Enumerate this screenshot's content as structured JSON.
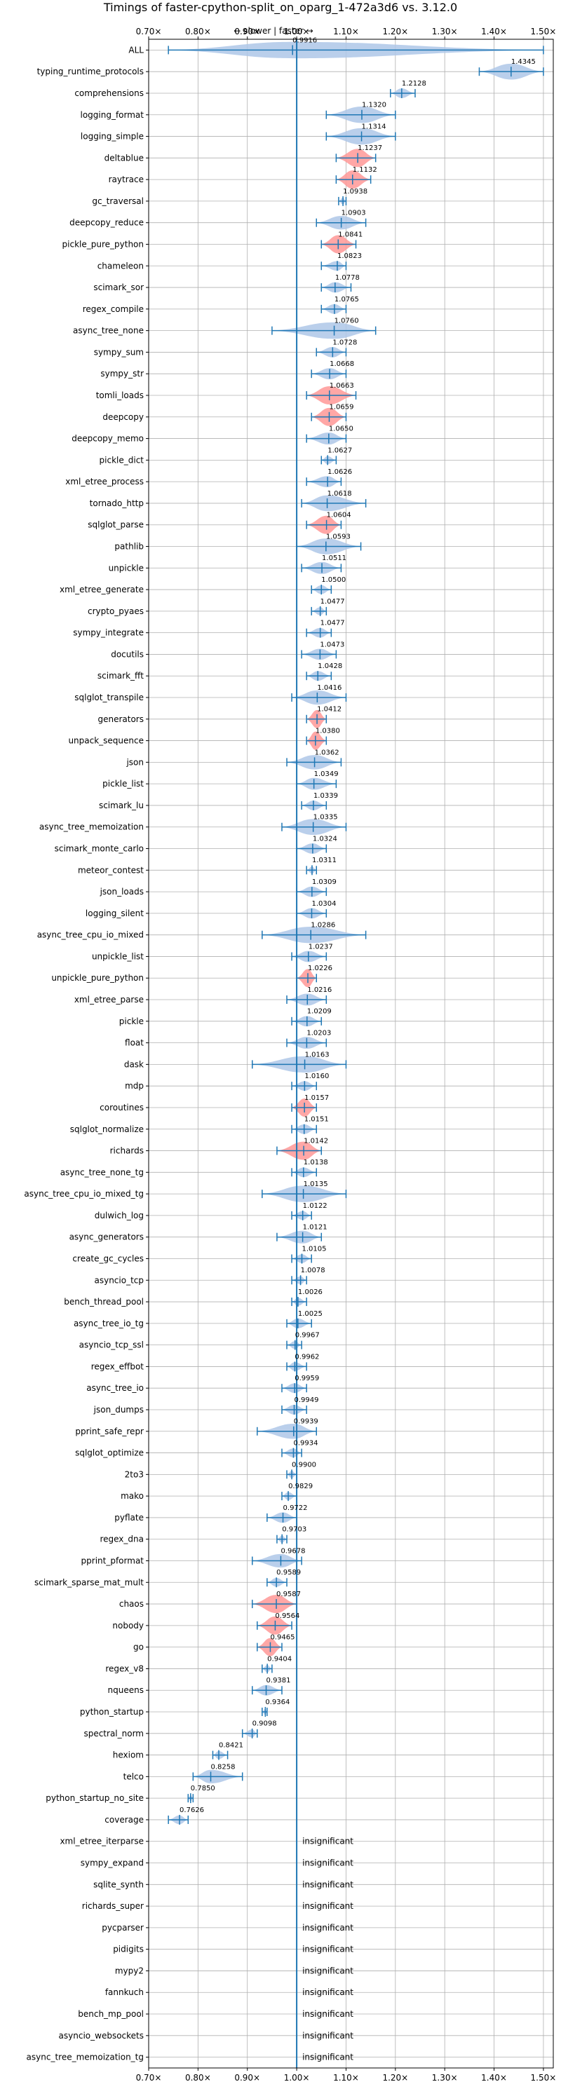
{
  "chart_data": {
    "type": "violin",
    "title": "Timings of faster-cpython-split_on_oparg_1-472a3d6 vs. 3.12.0",
    "direction_label": "← slower | faster →",
    "xlim": [
      0.7,
      1.52
    ],
    "x_ticks": [
      0.7,
      0.8,
      0.9,
      1.0,
      1.1,
      1.2,
      1.3,
      1.4,
      1.5
    ],
    "x_tick_labels": [
      "0.70×",
      "0.80×",
      "0.90×",
      "1.00×",
      "1.10×",
      "1.20×",
      "1.30×",
      "1.40×",
      "1.50×"
    ],
    "reference_line": 1.0,
    "grid": true,
    "insignificant_label": "insignificant",
    "colors": {
      "normal": "#1f77b4",
      "highlight": "#ff9896",
      "violin": "#aec7e8",
      "grid": "#b0b0b0"
    },
    "benchmarks": [
      {
        "name": "ALL",
        "value": 0.9916,
        "label": "0.9916",
        "min": 0.74,
        "max": 1.5
      },
      {
        "name": "typing_runtime_protocols",
        "value": 1.4345,
        "label": "1.4345",
        "min": 1.37,
        "max": 1.5
      },
      {
        "name": "comprehensions",
        "value": 1.2128,
        "label": "1.2128",
        "min": 1.19,
        "max": 1.24
      },
      {
        "name": "logging_format",
        "value": 1.132,
        "label": "1.1320",
        "min": 1.06,
        "max": 1.2
      },
      {
        "name": "logging_simple",
        "value": 1.1314,
        "label": "1.1314",
        "min": 1.06,
        "max": 1.2
      },
      {
        "name": "deltablue",
        "value": 1.1237,
        "label": "1.1237",
        "min": 1.08,
        "max": 1.16,
        "highlight": true
      },
      {
        "name": "raytrace",
        "value": 1.1132,
        "label": "1.1132",
        "min": 1.08,
        "max": 1.15,
        "highlight": true
      },
      {
        "name": "gc_traversal",
        "value": 1.0938,
        "label": "1.0938",
        "min": 1.085,
        "max": 1.1
      },
      {
        "name": "deepcopy_reduce",
        "value": 1.0903,
        "label": "1.0903",
        "min": 1.04,
        "max": 1.14
      },
      {
        "name": "pickle_pure_python",
        "value": 1.0841,
        "label": "1.0841",
        "min": 1.05,
        "max": 1.12,
        "highlight": true
      },
      {
        "name": "chameleon",
        "value": 1.0823,
        "label": "1.0823",
        "min": 1.05,
        "max": 1.1
      },
      {
        "name": "scimark_sor",
        "value": 1.0778,
        "label": "1.0778",
        "min": 1.05,
        "max": 1.11
      },
      {
        "name": "regex_compile",
        "value": 1.0765,
        "label": "1.0765",
        "min": 1.05,
        "max": 1.1
      },
      {
        "name": "async_tree_none",
        "value": 1.076,
        "label": "1.0760",
        "min": 0.95,
        "max": 1.16
      },
      {
        "name": "sympy_sum",
        "value": 1.0728,
        "label": "1.0728",
        "min": 1.04,
        "max": 1.1
      },
      {
        "name": "sympy_str",
        "value": 1.0668,
        "label": "1.0668",
        "min": 1.03,
        "max": 1.1
      },
      {
        "name": "tomli_loads",
        "value": 1.0663,
        "label": "1.0663",
        "min": 1.02,
        "max": 1.12,
        "highlight": true
      },
      {
        "name": "deepcopy",
        "value": 1.0659,
        "label": "1.0659",
        "min": 1.03,
        "max": 1.1,
        "highlight": true
      },
      {
        "name": "deepcopy_memo",
        "value": 1.065,
        "label": "1.0650",
        "min": 1.02,
        "max": 1.1
      },
      {
        "name": "pickle_dict",
        "value": 1.0627,
        "label": "1.0627",
        "min": 1.05,
        "max": 1.08
      },
      {
        "name": "xml_etree_process",
        "value": 1.0626,
        "label": "1.0626",
        "min": 1.02,
        "max": 1.09
      },
      {
        "name": "tornado_http",
        "value": 1.0618,
        "label": "1.0618",
        "min": 1.01,
        "max": 1.14
      },
      {
        "name": "sqlglot_parse",
        "value": 1.0604,
        "label": "1.0604",
        "min": 1.02,
        "max": 1.09,
        "highlight": true
      },
      {
        "name": "pathlib",
        "value": 1.0593,
        "label": "1.0593",
        "min": 1.0,
        "max": 1.13
      },
      {
        "name": "unpickle",
        "value": 1.0511,
        "label": "1.0511",
        "min": 1.01,
        "max": 1.09
      },
      {
        "name": "xml_etree_generate",
        "value": 1.05,
        "label": "1.0500",
        "min": 1.03,
        "max": 1.07
      },
      {
        "name": "crypto_pyaes",
        "value": 1.0477,
        "label": "1.0477",
        "min": 1.03,
        "max": 1.06
      },
      {
        "name": "sympy_integrate",
        "value": 1.0477,
        "label": "1.0477",
        "min": 1.02,
        "max": 1.07
      },
      {
        "name": "docutils",
        "value": 1.0473,
        "label": "1.0473",
        "min": 1.01,
        "max": 1.08
      },
      {
        "name": "scimark_fft",
        "value": 1.0428,
        "label": "1.0428",
        "min": 1.02,
        "max": 1.07
      },
      {
        "name": "sqlglot_transpile",
        "value": 1.0416,
        "label": "1.0416",
        "min": 0.99,
        "max": 1.1
      },
      {
        "name": "generators",
        "value": 1.0412,
        "label": "1.0412",
        "min": 1.02,
        "max": 1.06,
        "highlight": true
      },
      {
        "name": "unpack_sequence",
        "value": 1.038,
        "label": "1.0380",
        "min": 1.02,
        "max": 1.06,
        "highlight": true
      },
      {
        "name": "json",
        "value": 1.0362,
        "label": "1.0362",
        "min": 0.98,
        "max": 1.09
      },
      {
        "name": "pickle_list",
        "value": 1.0349,
        "label": "1.0349",
        "min": 1.0,
        "max": 1.08
      },
      {
        "name": "scimark_lu",
        "value": 1.0339,
        "label": "1.0339",
        "min": 1.01,
        "max": 1.06
      },
      {
        "name": "async_tree_memoization",
        "value": 1.0335,
        "label": "1.0335",
        "min": 0.97,
        "max": 1.1
      },
      {
        "name": "scimark_monte_carlo",
        "value": 1.0324,
        "label": "1.0324",
        "min": 1.0,
        "max": 1.06
      },
      {
        "name": "meteor_contest",
        "value": 1.0311,
        "label": "1.0311",
        "min": 1.02,
        "max": 1.04
      },
      {
        "name": "json_loads",
        "value": 1.0309,
        "label": "1.0309",
        "min": 1.0,
        "max": 1.06
      },
      {
        "name": "logging_silent",
        "value": 1.0304,
        "label": "1.0304",
        "min": 1.0,
        "max": 1.06
      },
      {
        "name": "async_tree_cpu_io_mixed",
        "value": 1.0286,
        "label": "1.0286",
        "min": 0.93,
        "max": 1.14
      },
      {
        "name": "unpickle_list",
        "value": 1.0237,
        "label": "1.0237",
        "min": 0.99,
        "max": 1.06
      },
      {
        "name": "unpickle_pure_python",
        "value": 1.0226,
        "label": "1.0226",
        "min": 1.0,
        "max": 1.04,
        "highlight": true
      },
      {
        "name": "xml_etree_parse",
        "value": 1.0216,
        "label": "1.0216",
        "min": 0.98,
        "max": 1.06
      },
      {
        "name": "pickle",
        "value": 1.0209,
        "label": "1.0209",
        "min": 0.99,
        "max": 1.05
      },
      {
        "name": "float",
        "value": 1.0203,
        "label": "1.0203",
        "min": 0.98,
        "max": 1.06
      },
      {
        "name": "dask",
        "value": 1.0163,
        "label": "1.0163",
        "min": 0.91,
        "max": 1.1
      },
      {
        "name": "mdp",
        "value": 1.016,
        "label": "1.0160",
        "min": 0.99,
        "max": 1.04
      },
      {
        "name": "coroutines",
        "value": 1.0157,
        "label": "1.0157",
        "min": 0.99,
        "max": 1.04,
        "highlight": true
      },
      {
        "name": "sqlglot_normalize",
        "value": 1.0151,
        "label": "1.0151",
        "min": 0.99,
        "max": 1.04
      },
      {
        "name": "richards",
        "value": 1.0142,
        "label": "1.0142",
        "min": 0.96,
        "max": 1.05,
        "highlight": true
      },
      {
        "name": "async_tree_none_tg",
        "value": 1.0138,
        "label": "1.0138",
        "min": 0.99,
        "max": 1.04
      },
      {
        "name": "async_tree_cpu_io_mixed_tg",
        "value": 1.0135,
        "label": "1.0135",
        "min": 0.93,
        "max": 1.1
      },
      {
        "name": "dulwich_log",
        "value": 1.0122,
        "label": "1.0122",
        "min": 0.99,
        "max": 1.03
      },
      {
        "name": "async_generators",
        "value": 1.0121,
        "label": "1.0121",
        "min": 0.96,
        "max": 1.05
      },
      {
        "name": "create_gc_cycles",
        "value": 1.0105,
        "label": "1.0105",
        "min": 0.99,
        "max": 1.03
      },
      {
        "name": "asyncio_tcp",
        "value": 1.0078,
        "label": "1.0078",
        "min": 0.99,
        "max": 1.02
      },
      {
        "name": "bench_thread_pool",
        "value": 1.0026,
        "label": "1.0026",
        "min": 0.99,
        "max": 1.02
      },
      {
        "name": "async_tree_io_tg",
        "value": 1.0025,
        "label": "1.0025",
        "min": 0.98,
        "max": 1.03
      },
      {
        "name": "asyncio_tcp_ssl",
        "value": 0.9967,
        "label": "0.9967",
        "min": 0.98,
        "max": 1.01
      },
      {
        "name": "regex_effbot",
        "value": 0.9962,
        "label": "0.9962",
        "min": 0.98,
        "max": 1.02
      },
      {
        "name": "async_tree_io",
        "value": 0.9959,
        "label": "0.9959",
        "min": 0.97,
        "max": 1.02
      },
      {
        "name": "json_dumps",
        "value": 0.9949,
        "label": "0.9949",
        "min": 0.97,
        "max": 1.02
      },
      {
        "name": "pprint_safe_repr",
        "value": 0.9939,
        "label": "0.9939",
        "min": 0.92,
        "max": 1.04
      },
      {
        "name": "sqlglot_optimize",
        "value": 0.9934,
        "label": "0.9934",
        "min": 0.97,
        "max": 1.01
      },
      {
        "name": "2to3",
        "value": 0.99,
        "label": "0.9900",
        "min": 0.98,
        "max": 1.0
      },
      {
        "name": "mako",
        "value": 0.9829,
        "label": "0.9829",
        "min": 0.97,
        "max": 1.0
      },
      {
        "name": "pyflate",
        "value": 0.9722,
        "label": "0.9722",
        "min": 0.94,
        "max": 1.0
      },
      {
        "name": "regex_dna",
        "value": 0.9703,
        "label": "0.9703",
        "min": 0.96,
        "max": 0.98
      },
      {
        "name": "pprint_pformat",
        "value": 0.9678,
        "label": "0.9678",
        "min": 0.91,
        "max": 1.01
      },
      {
        "name": "scimark_sparse_mat_mult",
        "value": 0.9589,
        "label": "0.9589",
        "min": 0.94,
        "max": 0.98
      },
      {
        "name": "chaos",
        "value": 0.9587,
        "label": "0.9587",
        "min": 0.91,
        "max": 1.0,
        "highlight": true
      },
      {
        "name": "nobody",
        "value": 0.9564,
        "label": "0.9564",
        "min": 0.92,
        "max": 0.99,
        "highlight": true
      },
      {
        "name": "go",
        "value": 0.9465,
        "label": "0.9465",
        "min": 0.92,
        "max": 0.97,
        "highlight": true
      },
      {
        "name": "regex_v8",
        "value": 0.9404,
        "label": "0.9404",
        "min": 0.93,
        "max": 0.95
      },
      {
        "name": "nqueens",
        "value": 0.9381,
        "label": "0.9381",
        "min": 0.91,
        "max": 0.97
      },
      {
        "name": "python_startup",
        "value": 0.9364,
        "label": "0.9364",
        "min": 0.93,
        "max": 0.94
      },
      {
        "name": "spectral_norm",
        "value": 0.9098,
        "label": "0.9098",
        "min": 0.89,
        "max": 0.92
      },
      {
        "name": "hexiom",
        "value": 0.8421,
        "label": "0.8421",
        "min": 0.83,
        "max": 0.86
      },
      {
        "name": "telco",
        "value": 0.8258,
        "label": "0.8258",
        "min": 0.79,
        "max": 0.89
      },
      {
        "name": "python_startup_no_site",
        "value": 0.785,
        "label": "0.7850",
        "min": 0.78,
        "max": 0.79
      },
      {
        "name": "coverage",
        "value": 0.7626,
        "label": "0.7626",
        "min": 0.74,
        "max": 0.78
      },
      {
        "name": "xml_etree_iterparse",
        "insignificant": true
      },
      {
        "name": "sympy_expand",
        "insignificant": true
      },
      {
        "name": "sqlite_synth",
        "insignificant": true
      },
      {
        "name": "richards_super",
        "insignificant": true
      },
      {
        "name": "pycparser",
        "insignificant": true
      },
      {
        "name": "pidigits",
        "insignificant": true
      },
      {
        "name": "mypy2",
        "insignificant": true
      },
      {
        "name": "fannkuch",
        "insignificant": true
      },
      {
        "name": "bench_mp_pool",
        "insignificant": true
      },
      {
        "name": "asyncio_websockets",
        "insignificant": true
      },
      {
        "name": "async_tree_memoization_tg",
        "insignificant": true
      }
    ]
  }
}
